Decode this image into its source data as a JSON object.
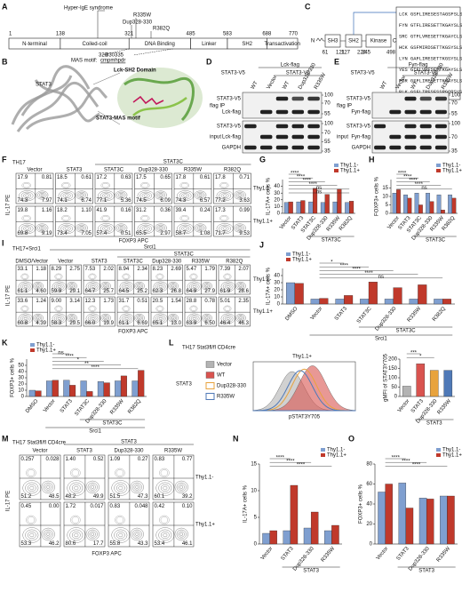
{
  "panel_letters": [
    "A",
    "B",
    "C",
    "D",
    "E",
    "F",
    "G",
    "H",
    "I",
    "J",
    "K",
    "L",
    "M",
    "N",
    "O"
  ],
  "panel_a": {
    "title": "Hyper-IgE syndrome",
    "mutations": [
      "R335W",
      "Dup328-330",
      "R382Q"
    ],
    "domains": [
      {
        "name": "N-terminal",
        "start": 1
      },
      {
        "name": "Coiled-coil",
        "start": 138
      },
      {
        "name": "DNA Binding",
        "start": 321
      },
      {
        "name": "Linker",
        "start": 485
      },
      {
        "name": "SH2",
        "start": 583
      },
      {
        "name": "Transactivation",
        "start": 688
      }
    ],
    "end": 770,
    "motif_label": "MAS motif:",
    "motif_seq": "cmpmhpdr",
    "motif_positions": [
      "328",
      "330",
      "335"
    ]
  },
  "panel_b": {
    "structure": "STAT3",
    "domain": "Lck-SH2 Domain",
    "motif": "STAT3-MAS motif"
  },
  "panel_c": {
    "ends": [
      "N",
      "C"
    ],
    "domains": [
      "SH3",
      "SH2",
      "Kinase"
    ],
    "positions": [
      61,
      121,
      127,
      224,
      245,
      498
    ],
    "sequences": [
      {
        "name": "LCK",
        "parts": [
          "GSFLIRES",
          "ESTAGSF",
          "SLS"
        ]
      },
      {
        "name": "FYN",
        "parts": [
          "GTFLIRES",
          "ETTKGAY",
          "SLS"
        ]
      },
      {
        "name": "SRC",
        "parts": [
          "GTFLVRESETTKGAYCLS"
        ]
      },
      {
        "name": "HCK",
        "parts": [
          "GSFMIRDSETTKGSYSLS"
        ]
      },
      {
        "name": "LYN",
        "parts": [
          "GAFLIRESETTKGSYSLS"
        ]
      },
      {
        "name": "YES",
        "parts": [
          "GIFLVRESETTKGAYSLS"
        ]
      },
      {
        "name": "FGR",
        "parts": [
          "GSFLIRESETTKGAYSLS"
        ]
      },
      {
        "name": "BLK",
        "parts": [
          "GSFLIRESESSPGQRSVS"
        ]
      }
    ],
    "highlight_color": "#d62728"
  },
  "blots": [
    {
      "header": "Lck-flag",
      "stat_labels": [
        "STAT3-V5",
        "STAT3-V5"
      ],
      "columns": [
        "WT",
        "Vector",
        "WT",
        "Dup328-330",
        "R335W"
      ],
      "sections": [
        "flag IP",
        "input"
      ],
      "ip_rows": [
        "STAT3-V5",
        "Lck-flag"
      ],
      "input_rows": [
        "STAT3-V5",
        "Lck-flag",
        "GAPDH"
      ],
      "markers": [
        "100",
        "70",
        "55",
        "100",
        "70",
        "55",
        "35"
      ]
    },
    {
      "header": "Fyn-flag",
      "stat_labels": [
        "STAT3-V5",
        "STAT3-V5"
      ],
      "columns": [
        "WT",
        "Vector",
        "WT",
        "Dup328-330",
        "R335W"
      ],
      "sections": [
        "flag IP",
        "input"
      ],
      "ip_rows": [
        "STAT3-V5",
        "Fyn-flag"
      ],
      "input_rows": [
        "STAT3-V5",
        "Fyn-flag",
        "GAPDH"
      ],
      "markers": [
        "100",
        "70",
        "55",
        "100",
        "70",
        "35"
      ]
    }
  ],
  "flow": [
    {
      "title": "TH17",
      "headers": [
        "STAT3C"
      ],
      "columns": [
        "Vector",
        "STAT3",
        "STAT3C",
        "Dup328-330",
        "R335W",
        "R382Q"
      ],
      "rows": [
        "Thy1.1-",
        "Thy1.1+"
      ],
      "y_label": "IL-17 PE",
      "x_label": "FOXP3 APC",
      "quadrants": [
        [
          [
            "17.9",
            "0.81",
            "74.3",
            "7.97"
          ],
          [
            "18.5",
            "0.61",
            "74.1",
            "6.74"
          ],
          [
            "17.2",
            "0.63",
            "77.1",
            "5.36"
          ],
          [
            "17.5",
            "0.65",
            "74.5",
            "6.09"
          ],
          [
            "17.8",
            "0.61",
            "74.3",
            "6.57"
          ],
          [
            "17.8",
            "0.71",
            "77.2",
            "3.63"
          ]
        ],
        [
          [
            "19.8",
            "1.16",
            "69.8",
            "9.19"
          ],
          [
            "18.2",
            "1.10",
            "73.4",
            "7.05"
          ],
          [
            "41.9",
            "0.16",
            "57.4",
            "0.51"
          ],
          [
            "31.2",
            "0.36",
            "65.5",
            "2.97"
          ],
          [
            "39.4",
            "0.24",
            "58.7",
            "1.08"
          ],
          [
            "17.3",
            "0.99",
            "71.7",
            "9.53"
          ]
        ]
      ]
    },
    {
      "title": "TH17+Srci1",
      "headers": [
        "Srci1",
        "STAT3C"
      ],
      "columns": [
        "DMSO/Vector",
        "Vector",
        "STAT3",
        "STAT3C",
        "Dup328-330",
        "R335W",
        "R382Q"
      ],
      "rows": [
        "Thy1.1-",
        "Thy1.1+"
      ],
      "y_label": "IL-17 PE",
      "x_label": "FOXP3 APC",
      "quadrants": [
        [
          [
            "33.1",
            "1.18",
            "61.1",
            "4.60"
          ],
          [
            "8.29",
            "2.75",
            "59.9",
            "29.1"
          ],
          [
            "7.53",
            "2.02",
            "64.7",
            "25.7"
          ],
          [
            "8.94",
            "2.34",
            "64.5",
            "25.2"
          ],
          [
            "8.23",
            "2.69",
            "62.3",
            "26.8"
          ],
          [
            "5.47",
            "1.79",
            "64.9",
            "27.9"
          ],
          [
            "7.39",
            "2.07",
            "61.9",
            "28.6"
          ]
        ],
        [
          [
            "33.6",
            "1.24",
            "60.8",
            "4.39"
          ],
          [
            "9.00",
            "3.14",
            "58.3",
            "29.5"
          ],
          [
            "12.3",
            "1.73",
            "66.0",
            "19.9"
          ],
          [
            "31.7",
            "0.51",
            "61.1",
            "6.69"
          ],
          [
            "20.5",
            "1.54",
            "65.1",
            "13.0"
          ],
          [
            "28.8",
            "0.78",
            "63.9",
            "6.50"
          ],
          [
            "5.01",
            "2.35",
            "46.4",
            "46.3"
          ]
        ]
      ]
    },
    {
      "title": "TH17 Stat3fl/fl CD4cre",
      "headers": [
        "STAT3"
      ],
      "columns": [
        "Vector",
        "STAT3",
        "Dup328-330",
        "R335W"
      ],
      "rows": [
        "Thy1.1-",
        "Thy1.1+"
      ],
      "y_label": "IL-17 PE",
      "x_label": "FOXP3 APC",
      "quadrants": [
        [
          [
            "0.257",
            "0.028",
            "51.2",
            "48.5"
          ],
          [
            "1.40",
            "0.52",
            "48.2",
            "49.9"
          ],
          [
            "1.09",
            "0.27",
            "51.5",
            "47.3"
          ],
          [
            "0.83",
            "0.77",
            "60.1",
            "39.2"
          ]
        ],
        [
          [
            "0.45",
            "0.00",
            "53.3",
            "46.2"
          ],
          [
            "1.72",
            "0.017",
            "80.6",
            "17.7"
          ],
          [
            "0.83",
            "0.048",
            "55.8",
            "43.3"
          ],
          [
            "0.42",
            "0.10",
            "53.4",
            "46.1"
          ]
        ]
      ]
    }
  ],
  "histogram": {
    "title": "TH17 Stat3fl/fl CD4cre",
    "gate": "Thy1.1+",
    "row": "STAT3",
    "x_label": "pSTAT3Y705",
    "legend": [
      {
        "name": "Vector",
        "color": "#b3b3b3"
      },
      {
        "name": "WT",
        "color": "#d9534f"
      },
      {
        "name": "Dup328-330",
        "color": "#e8a33d"
      },
      {
        "name": "R335W",
        "color": "#4f79b7"
      }
    ]
  },
  "chart_data": [
    {
      "type": "bar",
      "y_label": "IL-17A+ cells %",
      "categories": [
        "Vector",
        "STAT3",
        "STAT3C",
        "Dup328-330",
        "R335W",
        "R382Q"
      ],
      "series": [
        {
          "name": "Thy1.1-",
          "color": "#7f9fd0",
          "values": [
            16,
            17,
            17,
            16,
            17,
            16
          ]
        },
        {
          "name": "Thy1.1+",
          "color": "#c0392b",
          "values": [
            17,
            19,
            37,
            28,
            36,
            18
          ]
        }
      ],
      "ylim": [
        0,
        50
      ],
      "yticks": [
        0,
        10,
        20,
        30,
        40
      ],
      "legend": "upper right",
      "group_labels": [
        "STAT3C"
      ],
      "significance": [
        "****",
        "****",
        "****",
        "****",
        "ns",
        "ns"
      ]
    },
    {
      "type": "bar",
      "y_label": "FOXP3+ cells %",
      "categories": [
        "Vector",
        "STAT3",
        "STAT3C",
        "Dup328-330",
        "R335W",
        "R382Q"
      ],
      "series": [
        {
          "name": "Thy1.1-",
          "color": "#7f9fd0",
          "values": [
            12,
            11,
            12,
            12,
            11,
            11
          ]
        },
        {
          "name": "Thy1.1+",
          "color": "#c0392b",
          "values": [
            14,
            9,
            5,
            7,
            2,
            9
          ]
        }
      ],
      "ylim": [
        0,
        20
      ],
      "yticks": [
        0,
        5,
        10,
        15
      ],
      "legend": "upper right",
      "group_labels": [
        "STAT3C"
      ],
      "significance": [
        "****",
        "****",
        "****",
        "****",
        "ns"
      ]
    },
    {
      "type": "bar",
      "y_label": "IL-17A+ cells %",
      "categories": [
        "DMSO",
        "Vector",
        "STAT3",
        "STAT3C",
        "Dup328-330",
        "R335W",
        "R382Q"
      ],
      "series": [
        {
          "name": "Thy1.1-",
          "color": "#7f9fd0",
          "values": [
            30,
            7,
            7,
            7,
            7,
            7,
            7
          ]
        },
        {
          "name": "Thy1.1+",
          "color": "#c0392b",
          "values": [
            29,
            8,
            12,
            31,
            23,
            27,
            7
          ]
        }
      ],
      "ylim": [
        0,
        50
      ],
      "yticks": [
        0,
        10,
        20,
        30,
        40
      ],
      "legend": "upper left",
      "group_labels": [
        "STAT3C",
        "Srci1"
      ],
      "significance": [
        "*",
        "****",
        "****",
        "****",
        "ns"
      ]
    },
    {
      "type": "bar",
      "y_label": "FOXP3+ cells %",
      "categories": [
        "DMSO",
        "Vector",
        "STAT3",
        "STAT3C",
        "Dup328-330",
        "R335W",
        "R382Q"
      ],
      "series": [
        {
          "name": "Thy1.1-",
          "color": "#7f9fd0",
          "values": [
            10,
            25,
            26,
            25,
            24,
            25,
            25
          ]
        },
        {
          "name": "Thy1.1+",
          "color": "#c0392b",
          "values": [
            9,
            26,
            18,
            8,
            22,
            33,
            42
          ]
        }
      ],
      "ylim": [
        0,
        60
      ],
      "yticks": [
        0,
        10,
        20,
        30,
        40,
        50
      ],
      "legend": "upper left",
      "group_labels": [
        "STAT3C",
        "Srci1"
      ],
      "significance": [
        "ns",
        "****",
        "*",
        "**",
        "****"
      ]
    },
    {
      "type": "bar",
      "y_label": "gMFI of STAT3Y705",
      "categories": [
        "Vector",
        "STAT3",
        "Dup328-330",
        "R335W"
      ],
      "values": [
        55,
        175,
        140,
        140
      ],
      "colors": [
        "#b3b3b3",
        "#d9534f",
        "#e8a33d",
        "#4f79b7"
      ],
      "ylim": [
        0,
        200
      ],
      "yticks": [
        0,
        50,
        100,
        150,
        200
      ],
      "group_labels": [
        "STAT3"
      ],
      "significance": [
        "***",
        "*"
      ]
    },
    {
      "type": "bar",
      "y_label": "IL-17A+ cells %",
      "categories": [
        "Vector",
        "STAT3",
        "Dup328-330",
        "R335W"
      ],
      "series": [
        {
          "name": "Thy1.1-",
          "color": "#7f9fd0",
          "values": [
            2,
            2.5,
            3,
            2.5
          ]
        },
        {
          "name": "Thy1.1+",
          "color": "#c0392b",
          "values": [
            2.5,
            11,
            6,
            3.5
          ]
        }
      ],
      "ylim": [
        0,
        15
      ],
      "yticks": [
        0,
        5,
        10,
        15
      ],
      "legend": "upper right",
      "group_labels": [
        "STAT3"
      ],
      "significance": [
        "****",
        "****",
        "****"
      ]
    },
    {
      "type": "bar",
      "y_label": "FOXP3+ cells %",
      "categories": [
        "Vector",
        "STAT3",
        "Dup328-330",
        "R335W"
      ],
      "series": [
        {
          "name": "Thy1.1-",
          "color": "#7f9fd0",
          "values": [
            52,
            61,
            46,
            48
          ]
        },
        {
          "name": "Thy1.1+",
          "color": "#c0392b",
          "values": [
            60,
            36,
            45,
            48
          ]
        }
      ],
      "ylim": [
        0,
        80
      ],
      "yticks": [
        0,
        20,
        40,
        60,
        80
      ],
      "legend": "upper right",
      "group_labels": [
        "STAT3"
      ],
      "significance": [
        "****",
        "****",
        "****"
      ]
    }
  ]
}
